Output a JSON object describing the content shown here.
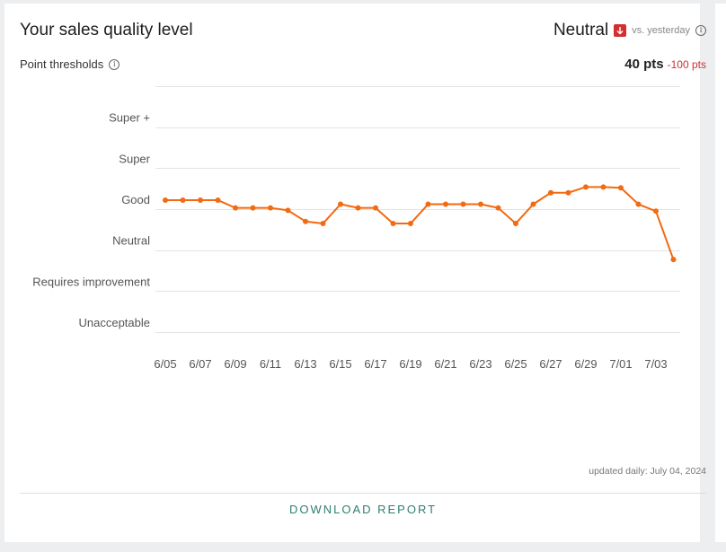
{
  "header": {
    "title": "Your sales quality level",
    "status": "Neutral",
    "comparison": "vs. yesterday",
    "thresholds_label": "Point thresholds",
    "points": "40 pts",
    "points_delta": "-100 pts"
  },
  "colors": {
    "line": "#f26a12",
    "down": "#d32f2f",
    "link": "#2f7f6f"
  },
  "chart_data": {
    "type": "line",
    "title": "",
    "xlabel": "",
    "ylabel": "",
    "y_levels": [
      "Unacceptable",
      "Requires improvement",
      "Neutral",
      "Good",
      "Super",
      "Super +"
    ],
    "x_ticks": [
      "6/05",
      "6/07",
      "6/09",
      "6/11",
      "6/13",
      "6/15",
      "6/17",
      "6/19",
      "6/21",
      "6/23",
      "6/25",
      "6/27",
      "6/29",
      "7/01",
      "7/03"
    ],
    "x": [
      "6/05",
      "6/06",
      "6/07",
      "6/08",
      "6/09",
      "6/10",
      "6/11",
      "6/12",
      "6/13",
      "6/14",
      "6/15",
      "6/16",
      "6/17",
      "6/18",
      "6/19",
      "6/20",
      "6/21",
      "6/22",
      "6/23",
      "6/24",
      "6/25",
      "6/26",
      "6/27",
      "6/28",
      "6/29",
      "6/30",
      "7/01",
      "7/02",
      "7/03",
      "7/04"
    ],
    "series": [
      {
        "values": [
          3.22,
          3.22,
          3.22,
          3.22,
          3.03,
          3.03,
          3.03,
          2.97,
          2.7,
          2.65,
          3.12,
          3.03,
          3.03,
          2.65,
          2.65,
          3.12,
          3.12,
          3.12,
          3.12,
          3.03,
          2.65,
          3.12,
          3.4,
          3.4,
          3.54,
          3.54,
          3.52,
          3.12,
          2.95,
          1.77
        ]
      }
    ],
    "ylim": [
      0,
      6
    ],
    "grid": true,
    "legend": "none"
  },
  "footer": {
    "updated": "updated daily: July 04, 2024",
    "download": "DOWNLOAD REPORT"
  }
}
